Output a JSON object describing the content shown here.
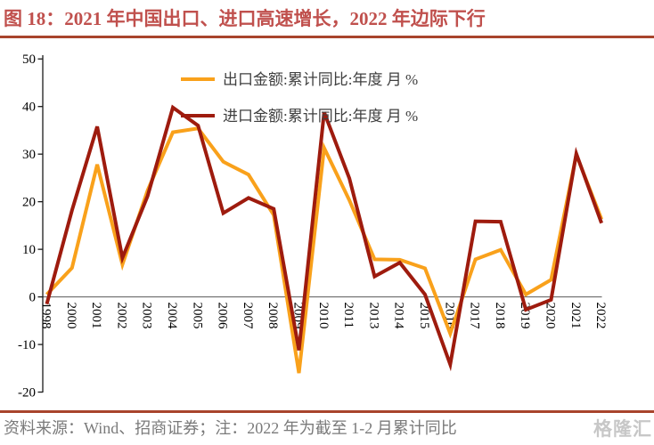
{
  "title": "图 18：2021 年中国出口、进口高速增长，2022 年边际下行",
  "footer": {
    "source_note": "资料来源：Wind、招商证券；注：2022 年为截至 1-2 月累计同比"
  },
  "watermark": "格隆汇",
  "colors": {
    "title": "#C0504D",
    "rule": "#A8442C",
    "export_line": "#F9A11B",
    "import_line": "#9E1B0E",
    "axis": "#1A1A1A",
    "zero_line": "#595959",
    "legend_text": "#3F3F3F",
    "footer_text": "#7A7A7A"
  },
  "chart_data": {
    "type": "line",
    "title": "",
    "xlabel": "",
    "ylabel": "",
    "ylim": [
      -20,
      50
    ],
    "yticks": [
      50,
      40,
      30,
      20,
      10,
      0,
      -10,
      -20
    ],
    "grid": false,
    "legend_position": "top-center",
    "xlabel_rotation": 90,
    "x_axis_at_zero": true,
    "categories": [
      "1998",
      "2000",
      "2001",
      "2002",
      "2003",
      "2004",
      "2005",
      "2006",
      "2007",
      "2008",
      "2009",
      "2010",
      "2011",
      "2013",
      "2014",
      "2015",
      "2016",
      "2017",
      "2018",
      "2019",
      "2020",
      "2021",
      "2022"
    ],
    "series": [
      {
        "name": "出口金额:累计同比:年度 月 %",
        "color": "#F9A11B",
        "values": [
          0.5,
          6.1,
          27.8,
          6.8,
          22.4,
          34.6,
          35.4,
          28.4,
          25.7,
          17.2,
          -16.0,
          31.3,
          20.3,
          7.9,
          7.8,
          6.0,
          -7.7,
          7.9,
          9.9,
          0.5,
          3.6,
          29.9,
          16.3
        ]
      },
      {
        "name": "进口金额:累计同比:年度 月 %",
        "color": "#9E1B0E",
        "values": [
          -1.5,
          18.2,
          35.8,
          8.2,
          21.2,
          39.8,
          36.0,
          17.6,
          20.8,
          18.5,
          -11.2,
          38.8,
          24.9,
          4.3,
          7.2,
          0.5,
          -14.2,
          15.9,
          15.8,
          -2.7,
          -0.6,
          30.1,
          15.5
        ]
      }
    ]
  }
}
